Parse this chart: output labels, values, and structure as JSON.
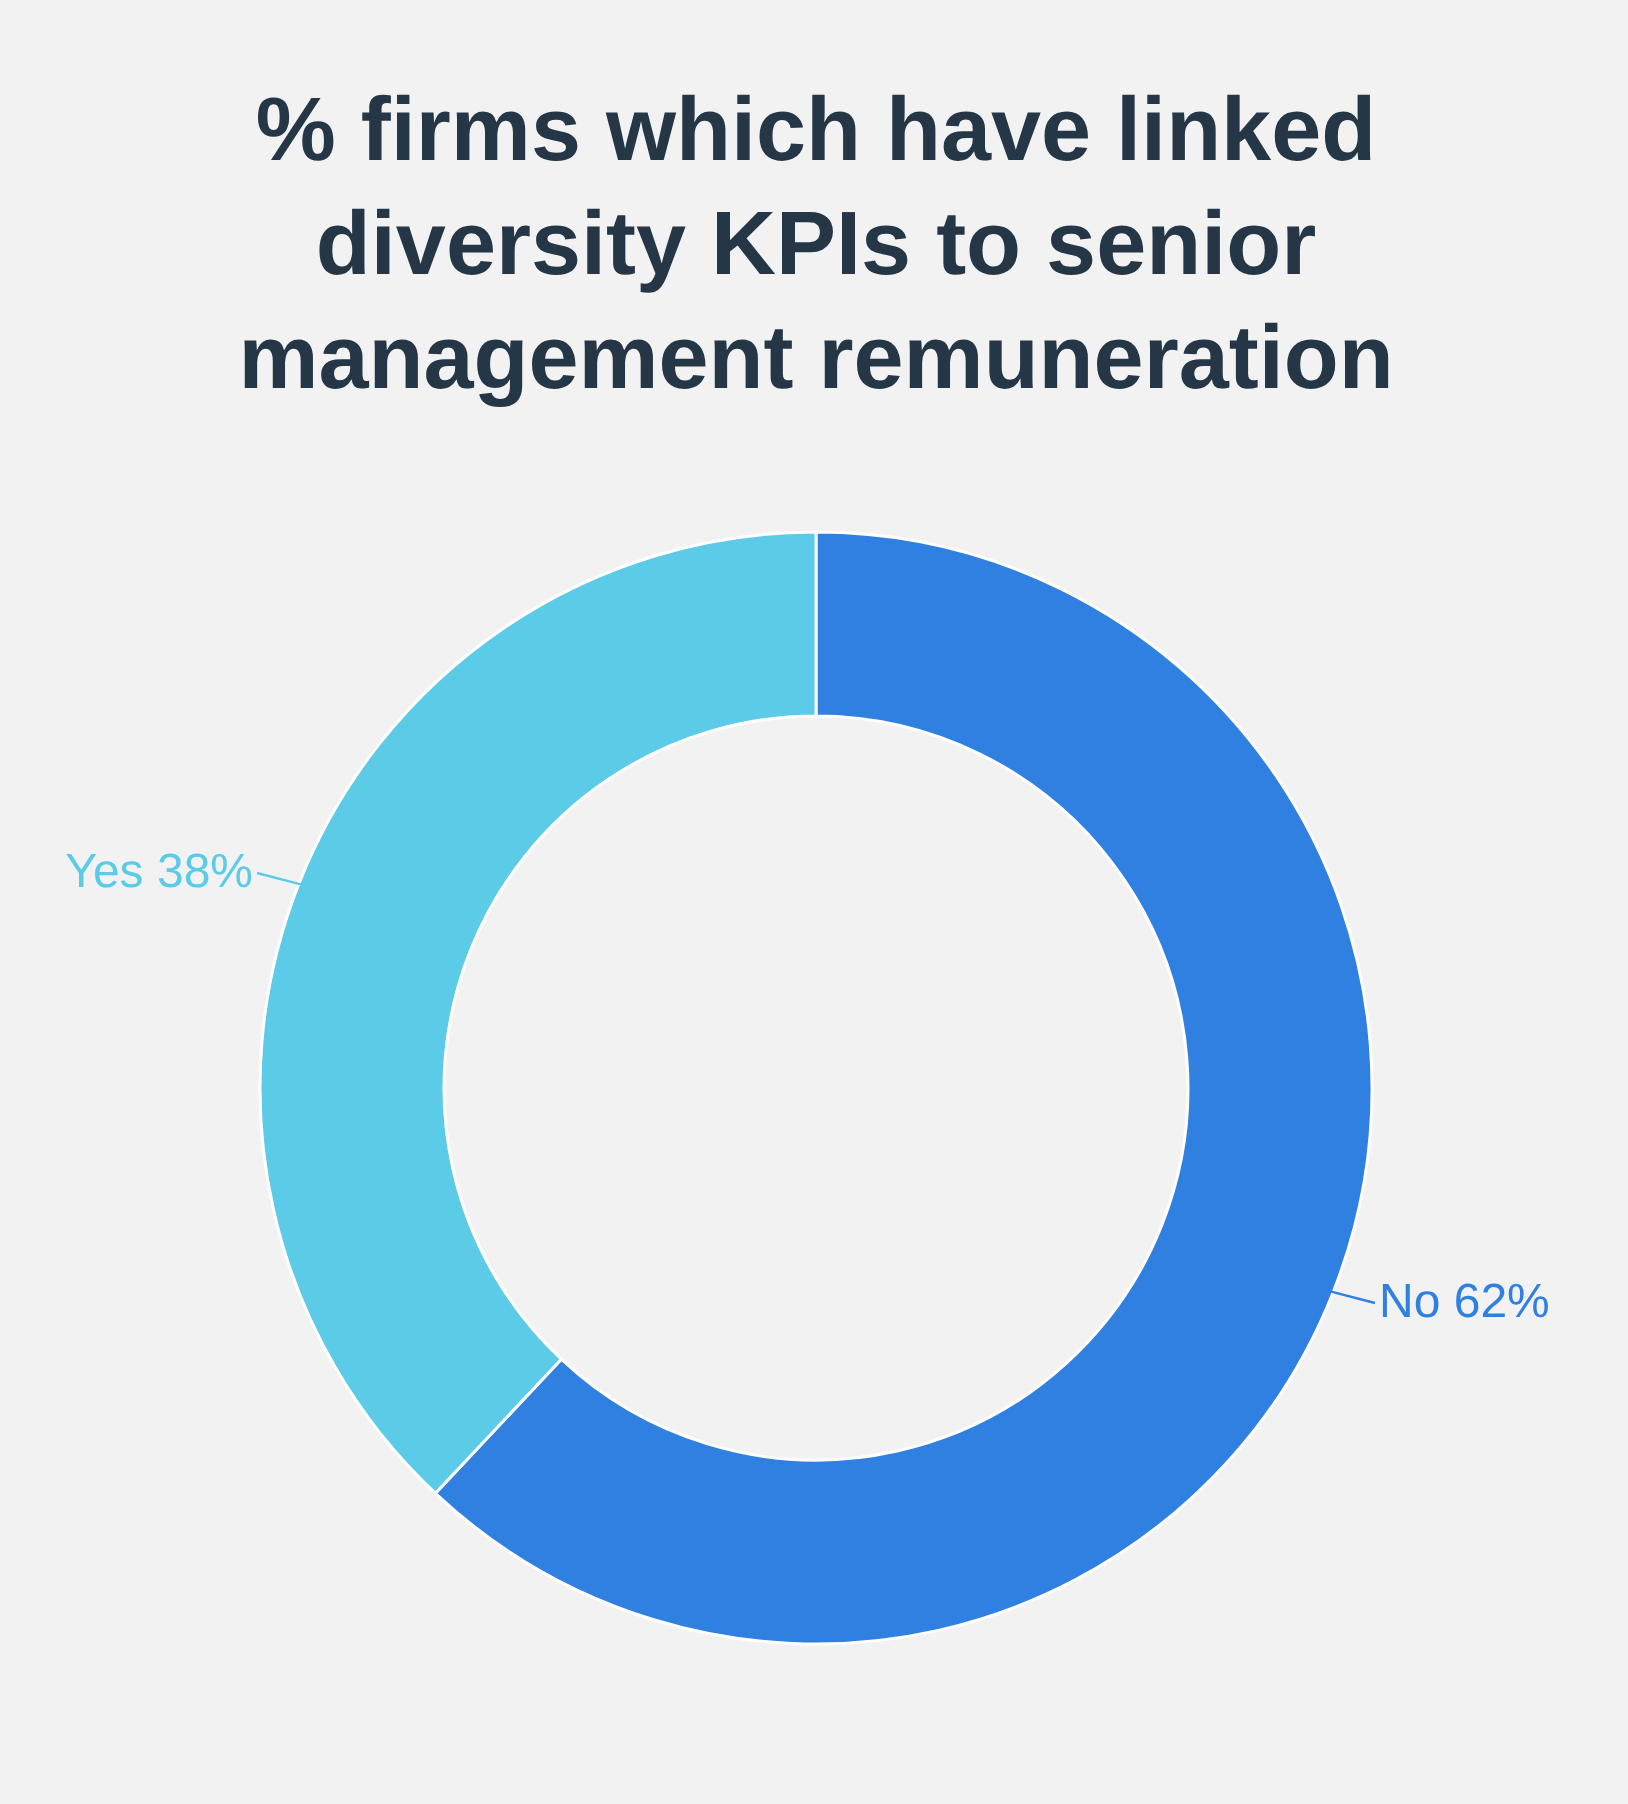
{
  "chart_data": {
    "type": "donut",
    "title": "% firms which have linked diversity KPIs to senior management remuneration",
    "categories": [
      "No",
      "Yes"
    ],
    "values": [
      62,
      38
    ],
    "colors": [
      "#3080e2",
      "#5bcbe8"
    ],
    "value_labels": [
      "62%",
      "38%"
    ]
  }
}
